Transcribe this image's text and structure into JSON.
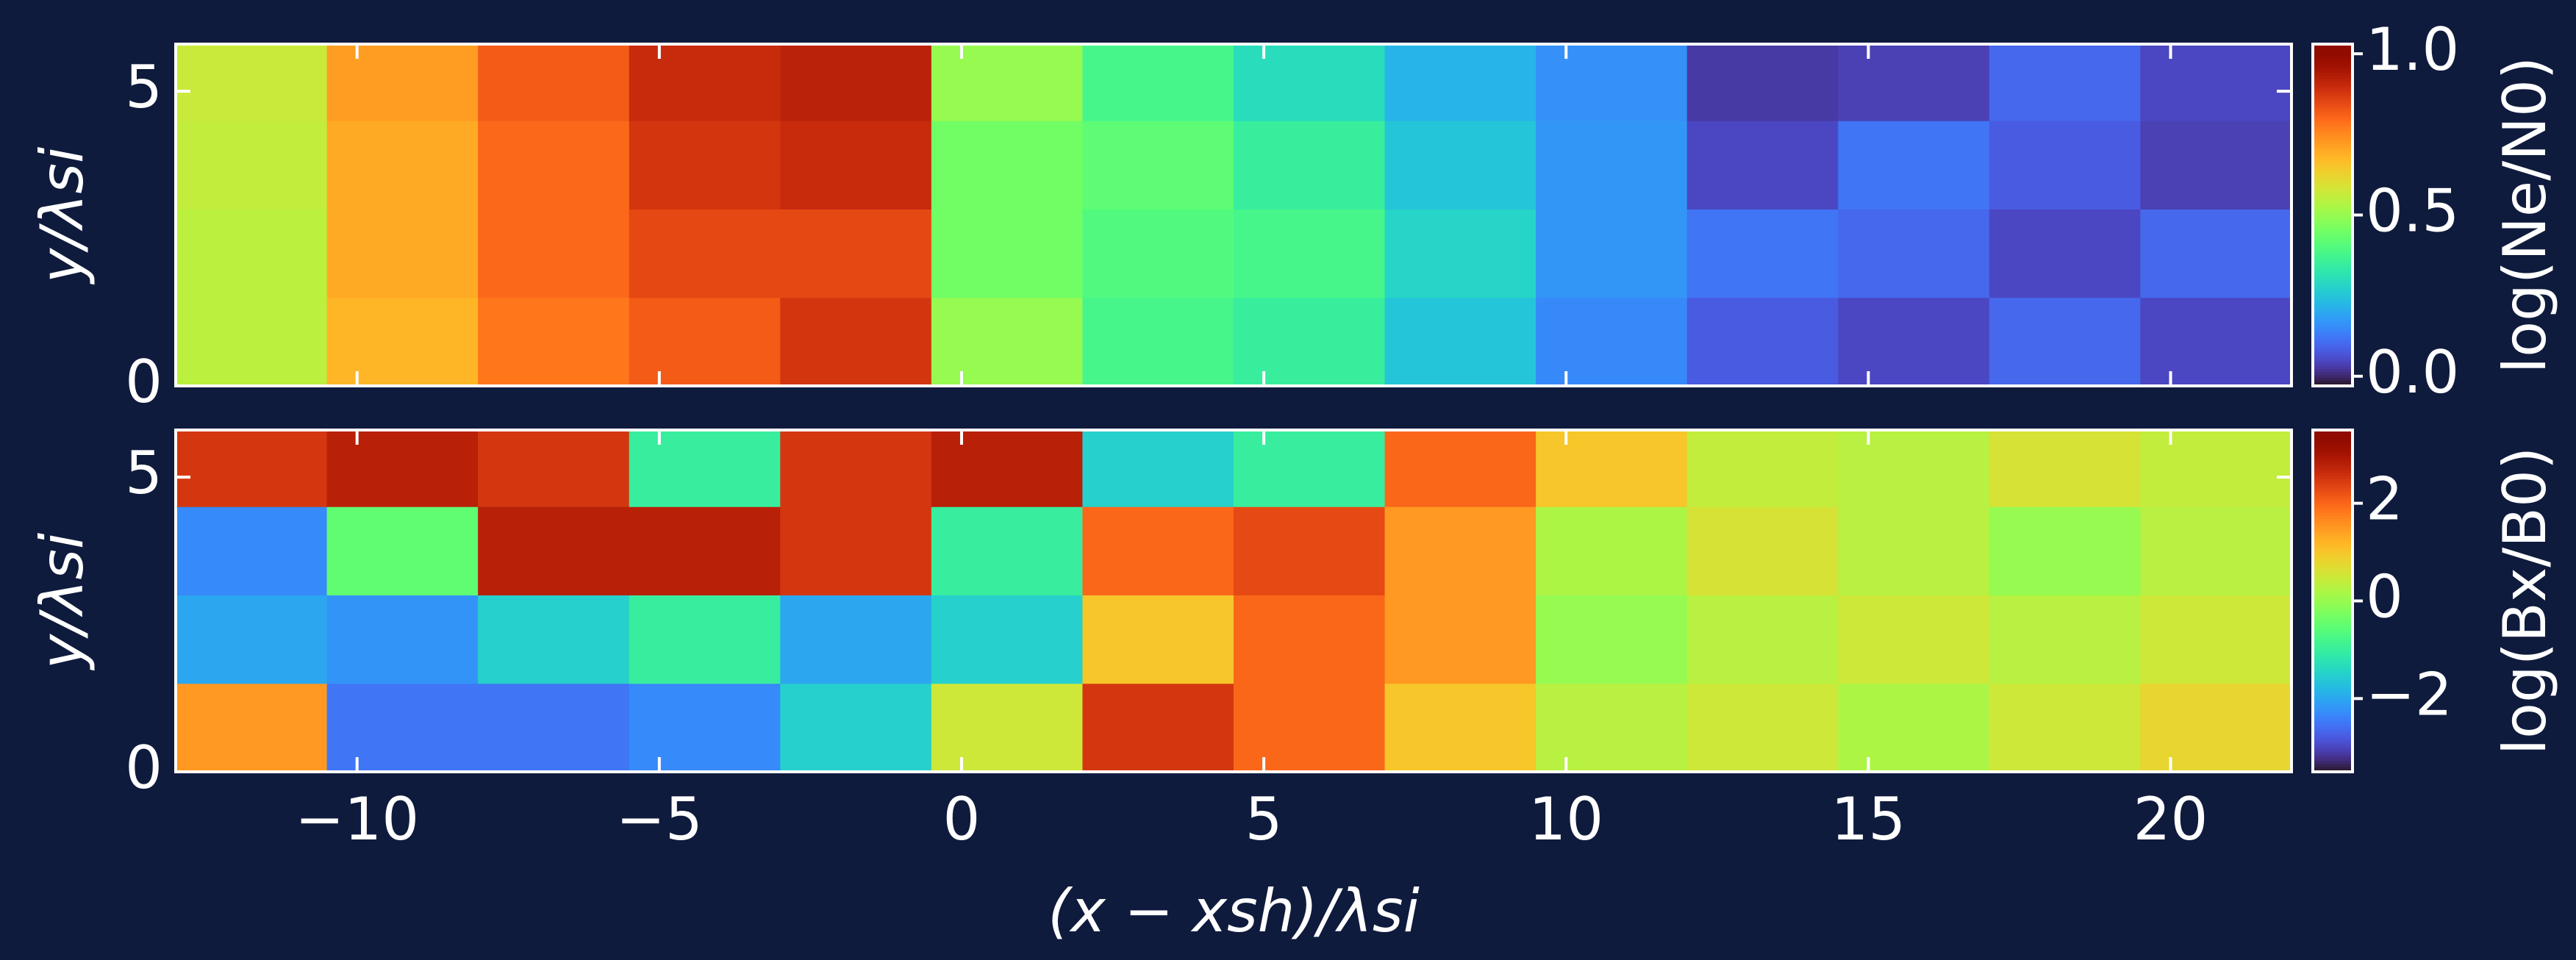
{
  "chart_data": [
    {
      "type": "heatmap",
      "colormap": "turbo",
      "ylabel": "y/λsi",
      "colorbar_label": "log(Ne/N0)",
      "xlim": [
        -13,
        22
      ],
      "ylim": [
        0,
        5.8
      ],
      "xticks": [
        -10,
        -5,
        0,
        5,
        10,
        15,
        20
      ],
      "yticks": [
        0,
        5
      ],
      "clim": [
        -0.03,
        1.03
      ],
      "cticks": [
        {
          "value": 0,
          "label": "0.0"
        },
        {
          "value": 0.5,
          "label": "0.5"
        },
        {
          "value": 1,
          "label": "1.0"
        }
      ],
      "xbins": [
        -13,
        -10.5,
        -8,
        -5.5,
        -3,
        -0.5,
        2,
        4.5,
        7,
        9.5,
        12,
        14.5,
        17,
        19.5,
        22
      ],
      "ybins": [
        0,
        1.5,
        3,
        4.5,
        5.8
      ],
      "z": [
        [
          0.55,
          0.68,
          0.78,
          0.82,
          0.88,
          0.5,
          0.38,
          0.35,
          0.25,
          0.15,
          0.08,
          0.05,
          0.1,
          0.05
        ],
        [
          0.55,
          0.7,
          0.8,
          0.85,
          0.85,
          0.45,
          0.4,
          0.38,
          0.28,
          0.17,
          0.12,
          0.1,
          0.05,
          0.1
        ],
        [
          0.56,
          0.7,
          0.8,
          0.88,
          0.9,
          0.45,
          0.42,
          0.35,
          0.25,
          0.17,
          0.05,
          0.12,
          0.08,
          0.04
        ],
        [
          0.57,
          0.72,
          0.82,
          0.9,
          0.92,
          0.5,
          0.38,
          0.3,
          0.22,
          0.16,
          0.03,
          0.04,
          0.1,
          0.05
        ]
      ]
    },
    {
      "type": "heatmap",
      "colormap": "turbo",
      "xlabel": "(x − xsh)/λsi",
      "ylabel": "y/λsi",
      "colorbar_label": "log(Bx/B0)",
      "xlim": [
        -13,
        22
      ],
      "ylim": [
        0,
        5.8
      ],
      "xticks": [
        {
          "value": -10,
          "label": "−10"
        },
        {
          "value": -5,
          "label": "−5"
        },
        0,
        5,
        10,
        15,
        20
      ],
      "yticks": [
        0,
        5
      ],
      "clim": [
        -3.5,
        3.5
      ],
      "cticks": [
        {
          "value": -2,
          "label": "−2"
        },
        0,
        2
      ],
      "xbins": [
        -13,
        -10.5,
        -8,
        -5.5,
        -3,
        -0.5,
        2,
        4.5,
        7,
        9.5,
        12,
        14.5,
        17,
        19.5,
        22
      ],
      "ybins": [
        0,
        1.5,
        3,
        4.5,
        5.8
      ],
      "z": [
        [
          1.5,
          -2.5,
          -2.5,
          -2.3,
          -1.5,
          0.5,
          2.5,
          2.0,
          1.0,
          0.3,
          0.5,
          0.2,
          0.5,
          0.8
        ],
        [
          -2.0,
          -2.2,
          -1.5,
          -1.0,
          -2.0,
          -1.5,
          1.0,
          2.0,
          1.5,
          0.0,
          0.3,
          0.5,
          0.3,
          0.5
        ],
        [
          -2.3,
          -0.5,
          2.8,
          2.8,
          2.5,
          -1.0,
          2.0,
          2.3,
          1.5,
          0.2,
          0.6,
          0.3,
          0.0,
          0.3
        ],
        [
          2.5,
          2.8,
          2.5,
          -1.0,
          2.5,
          2.8,
          -1.5,
          -1.0,
          2.0,
          1.0,
          0.4,
          0.3,
          0.6,
          0.4
        ]
      ]
    }
  ]
}
